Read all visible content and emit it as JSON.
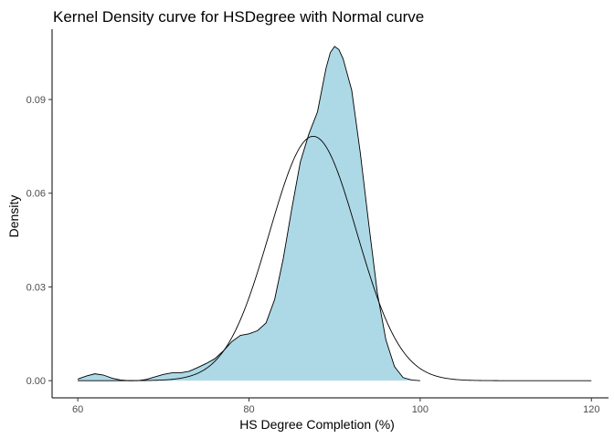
{
  "chart_data": {
    "type": "area",
    "title": "Kernel Density curve for HSDegree with Normal curve",
    "xlabel": "HS Degree Completion (%)",
    "ylabel": "Density",
    "xlim": [
      57,
      122
    ],
    "ylim": [
      -0.0055,
      0.1125
    ],
    "x_ticks": [
      60,
      80,
      100,
      120
    ],
    "y_ticks": [
      0.0,
      0.03,
      0.06,
      0.09
    ],
    "x_tick_labels": [
      "60",
      "80",
      "100",
      "120"
    ],
    "y_tick_labels": [
      "0.00",
      "0.03",
      "0.06",
      "0.09"
    ],
    "grid": false,
    "legend": "none",
    "series": [
      {
        "kind": "kernel-density",
        "fill": "#add8e6",
        "stroke": "#000000",
        "points": [
          [
            60,
            0.0005
          ],
          [
            61,
            0.0015
          ],
          [
            62,
            0.0022
          ],
          [
            63,
            0.0018
          ],
          [
            64,
            0.0008
          ],
          [
            65,
            0.0002
          ],
          [
            66,
            0.0
          ],
          [
            67,
            0.0
          ],
          [
            68,
            0.0004
          ],
          [
            69,
            0.0012
          ],
          [
            70,
            0.002
          ],
          [
            71,
            0.0025
          ],
          [
            72,
            0.0025
          ],
          [
            73,
            0.003
          ],
          [
            74,
            0.0042
          ],
          [
            75,
            0.0055
          ],
          [
            76,
            0.007
          ],
          [
            77,
            0.0095
          ],
          [
            78,
            0.0125
          ],
          [
            79,
            0.0145
          ],
          [
            80,
            0.015
          ],
          [
            81,
            0.016
          ],
          [
            82,
            0.0185
          ],
          [
            83,
            0.026
          ],
          [
            84,
            0.039
          ],
          [
            85,
            0.055
          ],
          [
            86,
            0.07
          ],
          [
            87,
            0.079
          ],
          [
            88,
            0.086
          ],
          [
            88.5,
            0.093
          ],
          [
            89,
            0.1
          ],
          [
            89.5,
            0.105
          ],
          [
            90,
            0.107
          ],
          [
            90.5,
            0.106
          ],
          [
            91,
            0.103
          ],
          [
            92,
            0.093
          ],
          [
            93,
            0.073
          ],
          [
            94,
            0.05
          ],
          [
            95,
            0.028
          ],
          [
            96,
            0.013
          ],
          [
            97,
            0.0045
          ],
          [
            98,
            0.001
          ],
          [
            99,
            0.0002
          ],
          [
            100,
            0.0
          ]
        ]
      },
      {
        "kind": "normal",
        "fill": "none",
        "stroke": "#000000",
        "mean": 87.5,
        "sd": 5.1,
        "x_range": [
          60,
          120
        ]
      }
    ]
  }
}
